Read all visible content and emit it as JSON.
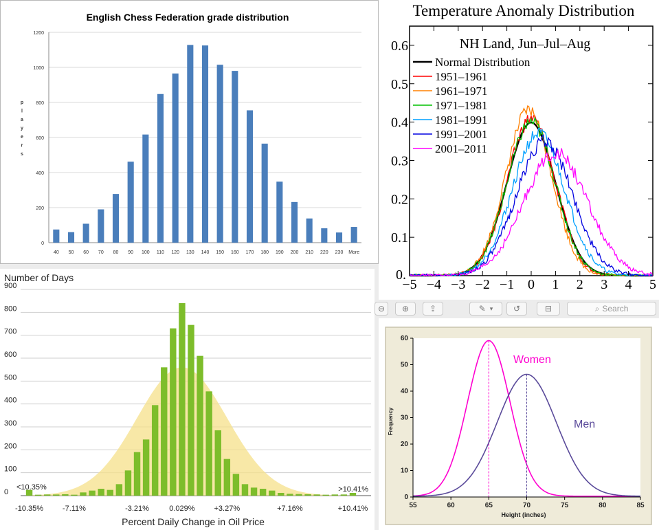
{
  "chess": {
    "chart_data": {
      "type": "bar",
      "title": "English Chess Federation grade distribution",
      "ylabel": "players",
      "categories": [
        "40",
        "50",
        "60",
        "70",
        "80",
        "90",
        "100",
        "110",
        "120",
        "130",
        "140",
        "150",
        "160",
        "170",
        "180",
        "190",
        "200",
        "210",
        "220",
        "230",
        "More"
      ],
      "values": [
        75,
        60,
        108,
        190,
        278,
        462,
        617,
        848,
        965,
        1128,
        1125,
        1015,
        980,
        755,
        565,
        348,
        232,
        138,
        82,
        58,
        90
      ],
      "ylim": [
        0,
        1200
      ],
      "yticks": [
        0,
        200,
        400,
        600,
        800,
        1000,
        1200
      ],
      "bar_color": "#4a7ebb"
    }
  },
  "temperature": {
    "chart_data": {
      "type": "line",
      "title": "Temperature Anomaly Distribution",
      "subtitle": "NH Land, Jun–Jul–Aug",
      "xlim": [
        -5,
        5
      ],
      "ylim": [
        0,
        0.65
      ],
      "xticks": [
        -5,
        -4,
        -3,
        -2,
        -1,
        0,
        1,
        2,
        3,
        4,
        5
      ],
      "yticks": [
        0.1,
        0.2,
        0.3,
        0.4,
        0.5,
        0.6
      ],
      "ytick_labels": [
        "0.1",
        "0.2",
        "0.3",
        "0.4",
        "0.5",
        "0.6"
      ],
      "y0_label": "0.",
      "legend_position": "top-left",
      "series": [
        {
          "name": "Normal Distribution",
          "color": "#000000",
          "mean": 0.0,
          "sd": 1.0,
          "peak": 0.399
        },
        {
          "name": "1951–1961",
          "color": "#ff0000",
          "mean": 0.0,
          "sd": 0.98,
          "peak": 0.41
        },
        {
          "name": "1961–1971",
          "color": "#ff8000",
          "mean": -0.1,
          "sd": 0.95,
          "peak": 0.43
        },
        {
          "name": "1971–1981",
          "color": "#00c000",
          "mean": 0.0,
          "sd": 0.99,
          "peak": 0.4
        },
        {
          "name": "1981–1991",
          "color": "#00a0ff",
          "mean": 0.3,
          "sd": 1.08,
          "peak": 0.37
        },
        {
          "name": "1991–2001",
          "color": "#0000e0",
          "mean": 0.55,
          "sd": 1.15,
          "peak": 0.35
        },
        {
          "name": "2001–2011",
          "color": "#ff00ff",
          "mean": 1.0,
          "sd": 1.3,
          "peak": 0.32
        }
      ]
    }
  },
  "oil": {
    "chart_data": {
      "type": "bar",
      "ylabel": "Number of Days",
      "xlabel": "Percent Daily Change in Oil Price",
      "ylim": [
        0,
        900
      ],
      "yticks": [
        0,
        100,
        200,
        300,
        400,
        500,
        600,
        700,
        800,
        900
      ],
      "values": [
        25,
        4,
        5,
        5,
        6,
        4,
        14,
        22,
        30,
        25,
        50,
        110,
        190,
        245,
        395,
        560,
        730,
        840,
        745,
        610,
        455,
        285,
        160,
        95,
        50,
        35,
        30,
        22,
        12,
        8,
        7,
        6,
        5,
        4,
        5,
        5,
        12
      ],
      "xtick_labels": [
        {
          "label": "-10.35%",
          "index": 0
        },
        {
          "label": "-7.11%",
          "index": 5
        },
        {
          "label": "-3.21%",
          "index": 12
        },
        {
          "label": "0.029%",
          "index": 17
        },
        {
          "label": "+3.27%",
          "index": 22
        },
        {
          "label": "+7.16%",
          "index": 29
        },
        {
          "label": "+10.41%",
          "index": 36
        }
      ],
      "annotations": [
        "<10.35%",
        ">10.41%"
      ],
      "bar_color": "#7dbd2b",
      "curve_color": "#f5e08a"
    }
  },
  "height": {
    "chart_data": {
      "type": "line",
      "xlabel": "Height (inches)",
      "ylabel": "Frequency",
      "xlim": [
        55,
        85
      ],
      "ylim": [
        0,
        60
      ],
      "xticks": [
        55,
        60,
        65,
        70,
        75,
        80,
        85
      ],
      "yticks": [
        0,
        10,
        20,
        30,
        40,
        50,
        60
      ],
      "series": [
        {
          "name": "Women",
          "color": "#ff00d0",
          "mean": 65,
          "sd": 2.8,
          "peak": 60
        },
        {
          "name": "Men",
          "color": "#5a4a9a",
          "mean": 70,
          "sd": 3.9,
          "peak": 47
        }
      ],
      "background": "#efebd9"
    }
  },
  "toolbar": {
    "search_placeholder": "Search",
    "search_icon": "magnifier-icon",
    "icons": [
      "zoom-out-icon",
      "zoom-in-icon",
      "share-icon",
      "markup-icon",
      "chevron-down-icon",
      "rotate-icon",
      "toolbox-icon"
    ]
  }
}
